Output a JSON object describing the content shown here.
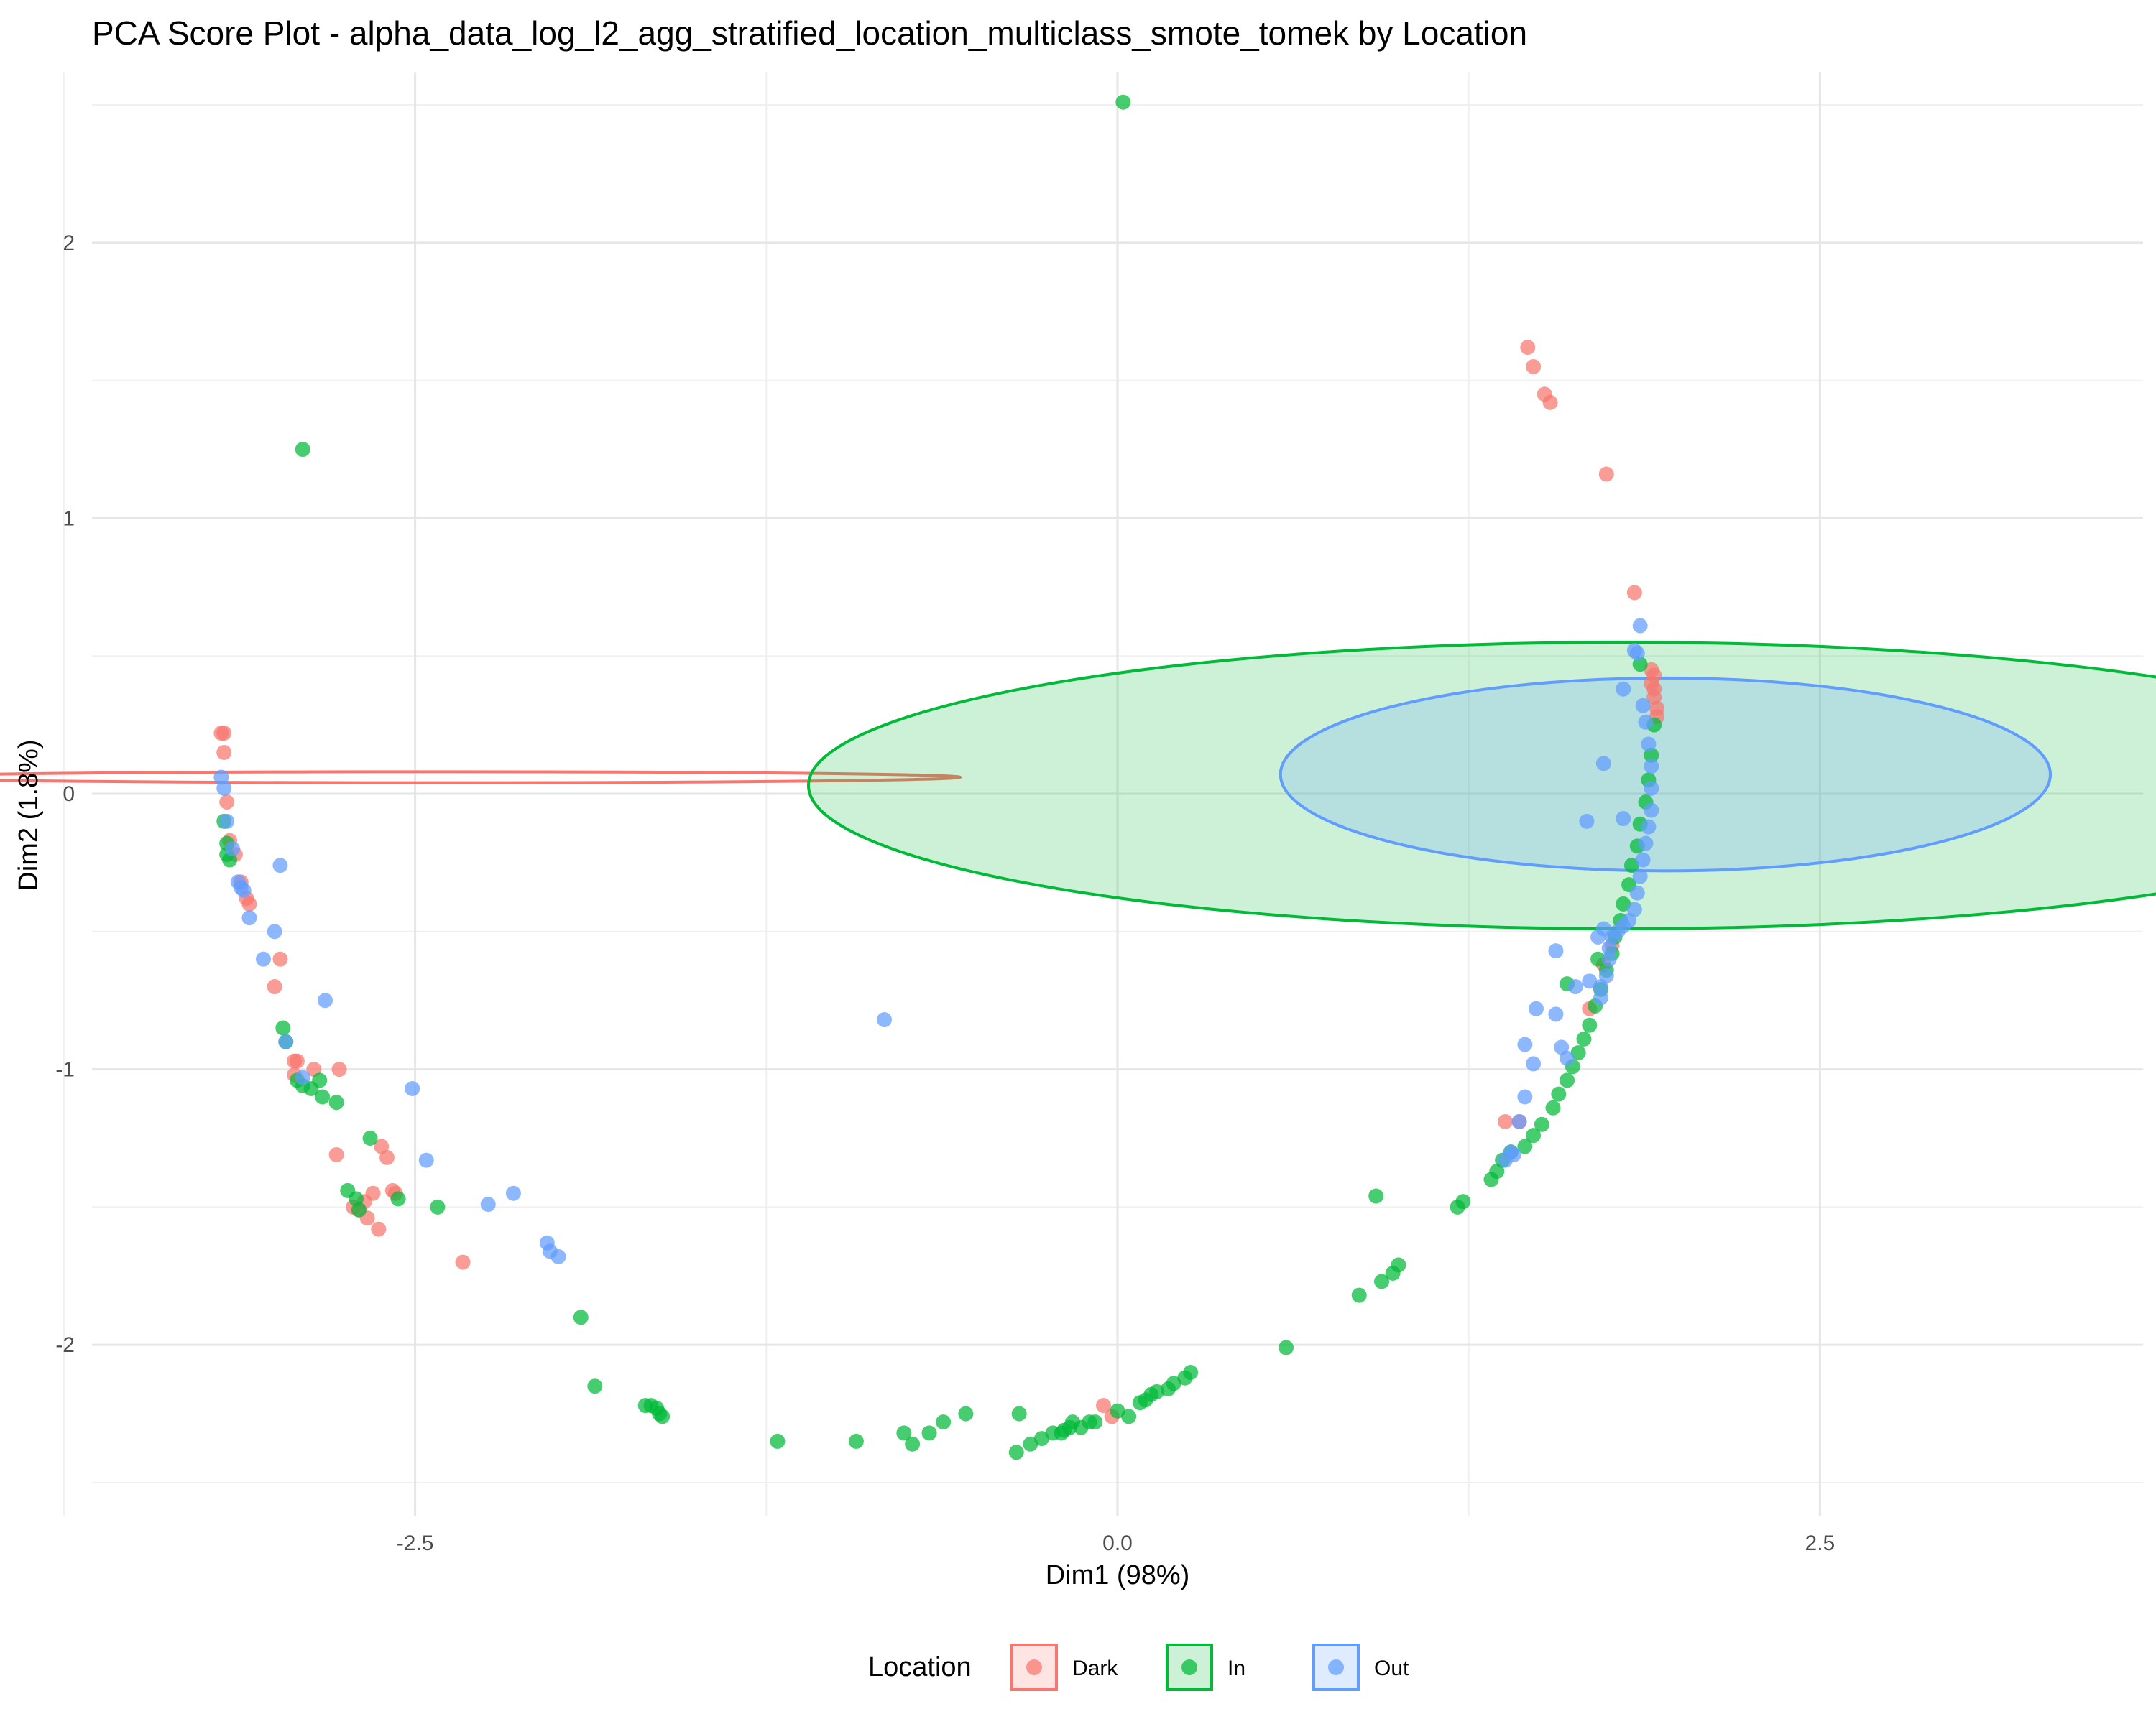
{
  "chart_data": {
    "type": "scatter",
    "title": "PCA Score Plot - alpha_data_log_l2_agg_stratified_location_multiclass_smote_tomek by Location",
    "xlabel": "Dim1 (98%)",
    "ylabel": "Dim2 (1.8%)",
    "xlim": [
      -3.65,
      3.65
    ],
    "ylim": [
      -2.62,
      2.62
    ],
    "x_ticks": [
      -2.5,
      0.0,
      2.5
    ],
    "x_tick_labels": [
      "-2.5",
      "0.0",
      "2.5"
    ],
    "y_ticks": [
      -2,
      -1,
      0,
      1,
      2
    ],
    "y_tick_labels": [
      "-2",
      "-1",
      "0",
      "1",
      "2"
    ],
    "grid": true,
    "legend": {
      "title": "Location",
      "position": "bottom"
    },
    "series": [
      {
        "name": "Dark",
        "color": "#F8766D",
        "points": [
          [
            -3.19,
            0.22
          ],
          [
            -3.18,
            0.22
          ],
          [
            -3.18,
            0.15
          ],
          [
            -3.17,
            -0.03
          ],
          [
            -3.16,
            -0.17
          ],
          [
            -3.14,
            -0.22
          ],
          [
            -3.12,
            -0.32
          ],
          [
            -3.1,
            -0.38
          ],
          [
            -3.09,
            -0.4
          ],
          [
            -3.0,
            -0.7
          ],
          [
            -2.98,
            -0.6
          ],
          [
            -2.93,
            -0.97
          ],
          [
            -2.92,
            -0.97
          ],
          [
            -2.93,
            -1.02
          ],
          [
            -2.86,
            -1.0
          ],
          [
            -2.77,
            -1.0
          ],
          [
            -2.78,
            -1.31
          ],
          [
            -2.62,
            -1.28
          ],
          [
            -2.6,
            -1.32
          ],
          [
            -2.58,
            -1.44
          ],
          [
            -2.57,
            -1.45
          ],
          [
            -2.65,
            -1.45
          ],
          [
            -2.68,
            -1.48
          ],
          [
            -2.7,
            -1.51
          ],
          [
            -2.72,
            -1.5
          ],
          [
            -2.67,
            -1.54
          ],
          [
            -2.63,
            -1.58
          ],
          [
            -2.33,
            -1.7
          ],
          [
            1.46,
            1.62
          ],
          [
            1.48,
            1.55
          ],
          [
            1.52,
            1.45
          ],
          [
            1.54,
            1.42
          ],
          [
            1.74,
            1.16
          ],
          [
            1.84,
            0.73
          ],
          [
            1.9,
            0.45
          ],
          [
            1.91,
            0.43
          ],
          [
            1.9,
            0.4
          ],
          [
            1.91,
            0.38
          ],
          [
            1.91,
            0.35
          ],
          [
            1.92,
            0.31
          ],
          [
            1.92,
            0.28
          ],
          [
            1.76,
            -0.55
          ],
          [
            1.73,
            -0.62
          ],
          [
            1.68,
            -0.78
          ],
          [
            1.38,
            -1.19
          ],
          [
            1.43,
            -1.19
          ],
          [
            -0.05,
            -2.22
          ],
          [
            -0.02,
            -2.26
          ]
        ]
      },
      {
        "name": "In",
        "color": "#00BA38",
        "points": [
          [
            0.02,
            2.51
          ],
          [
            -2.9,
            1.25
          ],
          [
            -3.18,
            -0.1
          ],
          [
            -3.17,
            -0.18
          ],
          [
            -3.17,
            -0.22
          ],
          [
            -3.16,
            -0.24
          ],
          [
            -2.97,
            -0.85
          ],
          [
            -2.96,
            -0.9
          ],
          [
            -2.92,
            -1.04
          ],
          [
            -2.9,
            -1.06
          ],
          [
            -2.87,
            -1.07
          ],
          [
            -2.84,
            -1.04
          ],
          [
            -2.83,
            -1.1
          ],
          [
            -2.78,
            -1.12
          ],
          [
            -2.66,
            -1.25
          ],
          [
            -2.74,
            -1.44
          ],
          [
            -2.7,
            -1.51
          ],
          [
            -2.71,
            -1.47
          ],
          [
            -2.56,
            -1.47
          ],
          [
            -2.42,
            -1.5
          ],
          [
            -1.91,
            -1.9
          ],
          [
            -1.86,
            -2.15
          ],
          [
            -1.68,
            -2.22
          ],
          [
            -1.66,
            -2.22
          ],
          [
            -1.64,
            -2.23
          ],
          [
            -1.62,
            -2.26
          ],
          [
            -1.63,
            -2.25
          ],
          [
            -1.21,
            -2.35
          ],
          [
            -0.93,
            -2.35
          ],
          [
            -0.76,
            -2.32
          ],
          [
            -0.73,
            -2.36
          ],
          [
            -0.67,
            -2.32
          ],
          [
            -0.62,
            -2.28
          ],
          [
            -0.54,
            -2.25
          ],
          [
            -0.36,
            -2.39
          ],
          [
            -0.35,
            -2.25
          ],
          [
            -0.31,
            -2.36
          ],
          [
            -0.27,
            -2.34
          ],
          [
            -0.23,
            -2.32
          ],
          [
            -0.2,
            -2.32
          ],
          [
            -0.17,
            -2.3
          ],
          [
            -0.13,
            -2.3
          ],
          [
            -0.1,
            -2.28
          ],
          [
            -0.16,
            -2.28
          ],
          [
            -0.19,
            -2.31
          ],
          [
            -0.08,
            -2.28
          ],
          [
            0.0,
            -2.24
          ],
          [
            0.04,
            -2.26
          ],
          [
            0.08,
            -2.21
          ],
          [
            0.1,
            -2.2
          ],
          [
            0.12,
            -2.18
          ],
          [
            0.14,
            -2.17
          ],
          [
            0.18,
            -2.16
          ],
          [
            0.2,
            -2.14
          ],
          [
            0.24,
            -2.12
          ],
          [
            0.26,
            -2.1
          ],
          [
            0.6,
            -2.01
          ],
          [
            0.86,
            -1.82
          ],
          [
            0.94,
            -1.77
          ],
          [
            0.98,
            -1.74
          ],
          [
            1.0,
            -1.71
          ],
          [
            0.92,
            -1.46
          ],
          [
            1.21,
            -1.5
          ],
          [
            1.23,
            -1.48
          ],
          [
            1.33,
            -1.4
          ],
          [
            1.35,
            -1.37
          ],
          [
            1.37,
            -1.33
          ],
          [
            1.4,
            -1.3
          ],
          [
            1.45,
            -1.28
          ],
          [
            1.48,
            -1.24
          ],
          [
            1.51,
            -1.2
          ],
          [
            1.55,
            -1.14
          ],
          [
            1.57,
            -1.09
          ],
          [
            1.6,
            -1.04
          ],
          [
            1.62,
            -0.99
          ],
          [
            1.64,
            -0.94
          ],
          [
            1.66,
            -0.89
          ],
          [
            1.68,
            -0.84
          ],
          [
            1.7,
            -0.77
          ],
          [
            1.72,
            -0.71
          ],
          [
            1.6,
            -0.69
          ],
          [
            1.74,
            -0.64
          ],
          [
            1.76,
            -0.58
          ],
          [
            1.77,
            -0.52
          ],
          [
            1.79,
            -0.46
          ],
          [
            1.8,
            -0.4
          ],
          [
            1.82,
            -0.33
          ],
          [
            1.83,
            -0.26
          ],
          [
            1.85,
            -0.19
          ],
          [
            1.86,
            -0.11
          ],
          [
            1.88,
            -0.03
          ],
          [
            1.89,
            0.05
          ],
          [
            1.9,
            0.14
          ],
          [
            1.91,
            0.25
          ],
          [
            1.86,
            0.47
          ],
          [
            1.71,
            -0.6
          ]
        ]
      },
      {
        "name": "Out",
        "color": "#619CFF",
        "points": [
          [
            -3.19,
            0.06
          ],
          [
            -3.18,
            0.02
          ],
          [
            -3.17,
            -0.1
          ],
          [
            -3.15,
            -0.2
          ],
          [
            -3.13,
            -0.32
          ],
          [
            -3.12,
            -0.34
          ],
          [
            -3.11,
            -0.35
          ],
          [
            -3.09,
            -0.45
          ],
          [
            -3.04,
            -0.6
          ],
          [
            -3.0,
            -0.5
          ],
          [
            -2.98,
            -0.26
          ],
          [
            -2.96,
            -0.9
          ],
          [
            -2.9,
            -1.03
          ],
          [
            -2.82,
            -0.75
          ],
          [
            -2.51,
            -1.07
          ],
          [
            -2.46,
            -1.33
          ],
          [
            -2.24,
            -1.49
          ],
          [
            -2.15,
            -1.45
          ],
          [
            -2.03,
            -1.63
          ],
          [
            -2.02,
            -1.66
          ],
          [
            -1.99,
            -1.68
          ],
          [
            -0.83,
            -0.82
          ],
          [
            1.67,
            -0.1
          ],
          [
            1.73,
            0.11
          ],
          [
            1.8,
            -0.09
          ],
          [
            1.8,
            0.38
          ],
          [
            1.84,
            0.52
          ],
          [
            1.85,
            0.51
          ],
          [
            1.86,
            0.61
          ],
          [
            1.87,
            0.32
          ],
          [
            1.88,
            0.26
          ],
          [
            1.89,
            0.18
          ],
          [
            1.9,
            0.1
          ],
          [
            1.9,
            0.02
          ],
          [
            1.9,
            -0.06
          ],
          [
            1.89,
            -0.12
          ],
          [
            1.88,
            -0.18
          ],
          [
            1.87,
            -0.24
          ],
          [
            1.86,
            -0.3
          ],
          [
            1.85,
            -0.36
          ],
          [
            1.84,
            -0.42
          ],
          [
            1.82,
            -0.46
          ],
          [
            1.8,
            -0.48
          ],
          [
            1.78,
            -0.5
          ],
          [
            1.76,
            -0.52
          ],
          [
            1.75,
            -0.56
          ],
          [
            1.75,
            -0.6
          ],
          [
            1.74,
            -0.66
          ],
          [
            1.72,
            -0.7
          ],
          [
            1.72,
            -0.74
          ],
          [
            1.56,
            -0.57
          ],
          [
            1.63,
            -0.7
          ],
          [
            1.56,
            -0.8
          ],
          [
            1.49,
            -0.78
          ],
          [
            1.45,
            -0.91
          ],
          [
            1.48,
            -0.98
          ],
          [
            1.58,
            -0.92
          ],
          [
            1.6,
            -0.96
          ],
          [
            1.45,
            -1.1
          ],
          [
            1.43,
            -1.19
          ],
          [
            1.4,
            -1.3
          ],
          [
            1.38,
            -1.33
          ],
          [
            1.41,
            -1.31
          ],
          [
            1.68,
            -0.68
          ],
          [
            1.71,
            -0.52
          ],
          [
            1.73,
            -0.49
          ]
        ]
      }
    ],
    "ellipses": [
      {
        "series": "Dark",
        "center": [
          -2.43,
          0.06
        ],
        "semi_x": 1.87,
        "semi_y": 0.02,
        "fill": false
      },
      {
        "series": "In",
        "center": [
          1.8,
          0.03
        ],
        "semi_x": 2.9,
        "semi_y": 0.52,
        "fill": true
      },
      {
        "series": "Out",
        "center": [
          1.95,
          0.07
        ],
        "semi_x": 1.37,
        "semi_y": 0.35,
        "fill": true
      }
    ]
  }
}
